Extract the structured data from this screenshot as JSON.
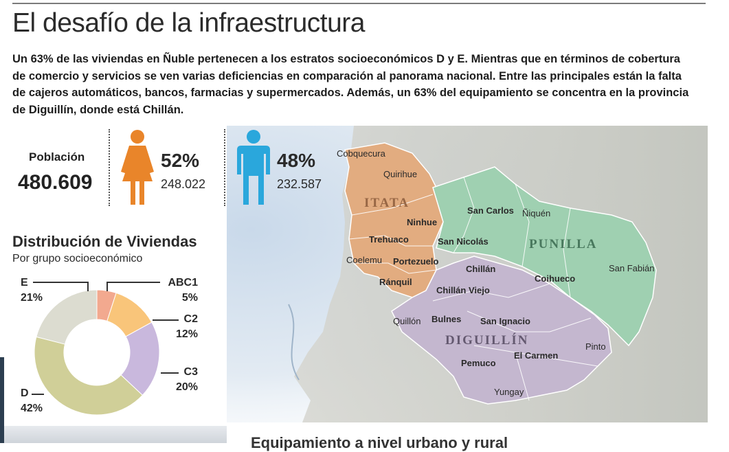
{
  "header": {
    "title": "El desafío de la infraestructura",
    "intro": "Un 63% de las viviendas en Ñuble pertenecen a los estratos socioeconómicos D y E.  Mientras que en términos de cobertura de comercio y servicios se ven varias deficiencias en comparación al panorama nacional. Entre las principales están la falta de cajeros automáticos, bancos, farmacias y supermercados. Además, un 63% del equipamiento se concentra en la provincia de Diguillín, donde está Chillán."
  },
  "population": {
    "label": "Población",
    "value": "480.609",
    "women": {
      "pct": "52%",
      "count": "248.022",
      "color": "#e9852a",
      "icon": "woman-icon"
    },
    "men": {
      "pct": "48%",
      "count": "232.587",
      "color": "#2aa7dc",
      "icon": "man-icon"
    }
  },
  "distribution": {
    "title": "Distribución de Viviendas",
    "subtitle": "Por grupo socioeconómico",
    "segments": [
      {
        "name": "ABC1",
        "pct": "5%",
        "value": 5,
        "color": "#f2a98f"
      },
      {
        "name": "C2",
        "pct": "12%",
        "value": 12,
        "color": "#f9c57a"
      },
      {
        "name": "C3",
        "pct": "20%",
        "value": 20,
        "color": "#c9b8dd"
      },
      {
        "name": "D",
        "pct": "42%",
        "value": 42,
        "color": "#d0cf98"
      },
      {
        "name": "E",
        "pct": "21%",
        "value": 21,
        "color": "#dcdcd0"
      }
    ]
  },
  "map": {
    "provinces": [
      {
        "name": "ITATA",
        "color": "#e2ac80"
      },
      {
        "name": "PUNILLA",
        "color": "#9fd0b1"
      },
      {
        "name": "DIGUILLÍN",
        "color": "#c4b7cf"
      }
    ],
    "communes": [
      "Cobquecura",
      "Quirihue",
      "Ninhue",
      "Trehuaco",
      "Coelemu",
      "Portezuelo",
      "Ránquil",
      "San Carlos",
      "Ñiquén",
      "San Nicolás",
      "Chillán",
      "Chillán Viejo",
      "Coihueco",
      "San Fabián",
      "Quillón",
      "Bulnes",
      "San Ignacio",
      "El Carmen",
      "Pemuco",
      "Pinto",
      "Yungay"
    ]
  },
  "footer": {
    "next_heading": "Equipamiento a nivel urbano y rural"
  }
}
